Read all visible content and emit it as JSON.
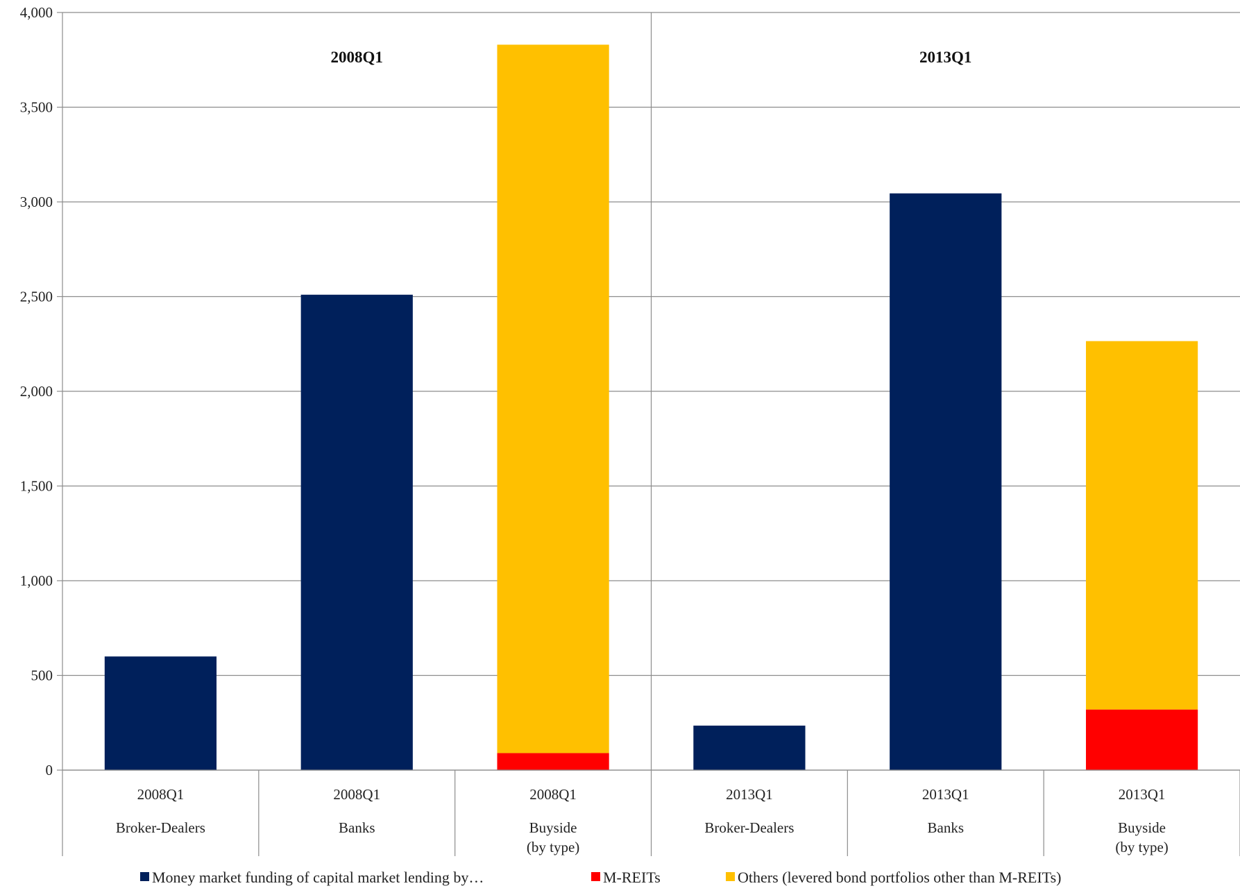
{
  "chart_data": {
    "type": "bar",
    "stacked": true,
    "title": "",
    "xlabel": "",
    "ylabel": "",
    "ylim": [
      0,
      4000
    ],
    "yticks": [
      0,
      500,
      1000,
      1500,
      2000,
      2500,
      3000,
      3500,
      4000
    ],
    "ytick_labels": [
      "0",
      "500",
      "1,000",
      "1,500",
      "2,000",
      "2,500",
      "3,000",
      "3,500",
      "4,000"
    ],
    "grid": true,
    "legend_position": "bottom",
    "panels": [
      "2008Q1",
      "2013Q1"
    ],
    "categories": [
      {
        "period": "2008Q1",
        "group": "Broker-Dealers",
        "group_line2": ""
      },
      {
        "period": "2008Q1",
        "group": "Banks",
        "group_line2": ""
      },
      {
        "period": "2008Q1",
        "group": "Buyside",
        "group_line2": "(by type)"
      },
      {
        "period": "2013Q1",
        "group": "Broker-Dealers",
        "group_line2": ""
      },
      {
        "period": "2013Q1",
        "group": "Banks",
        "group_line2": ""
      },
      {
        "period": "2013Q1",
        "group": "Buyside",
        "group_line2": "(by type)"
      }
    ],
    "series": [
      {
        "name": "Money market funding of capital market lending by…",
        "color": "#00205B",
        "values": [
          600,
          2510,
          0,
          235,
          3045,
          0
        ]
      },
      {
        "name": "M-REITs",
        "color": "#FF0000",
        "values": [
          0,
          0,
          90,
          0,
          0,
          320
        ]
      },
      {
        "name": "Others (levered bond portfolios other than M-REITs)",
        "color": "#FFC000",
        "values": [
          0,
          0,
          3740,
          0,
          0,
          1945
        ]
      }
    ]
  }
}
